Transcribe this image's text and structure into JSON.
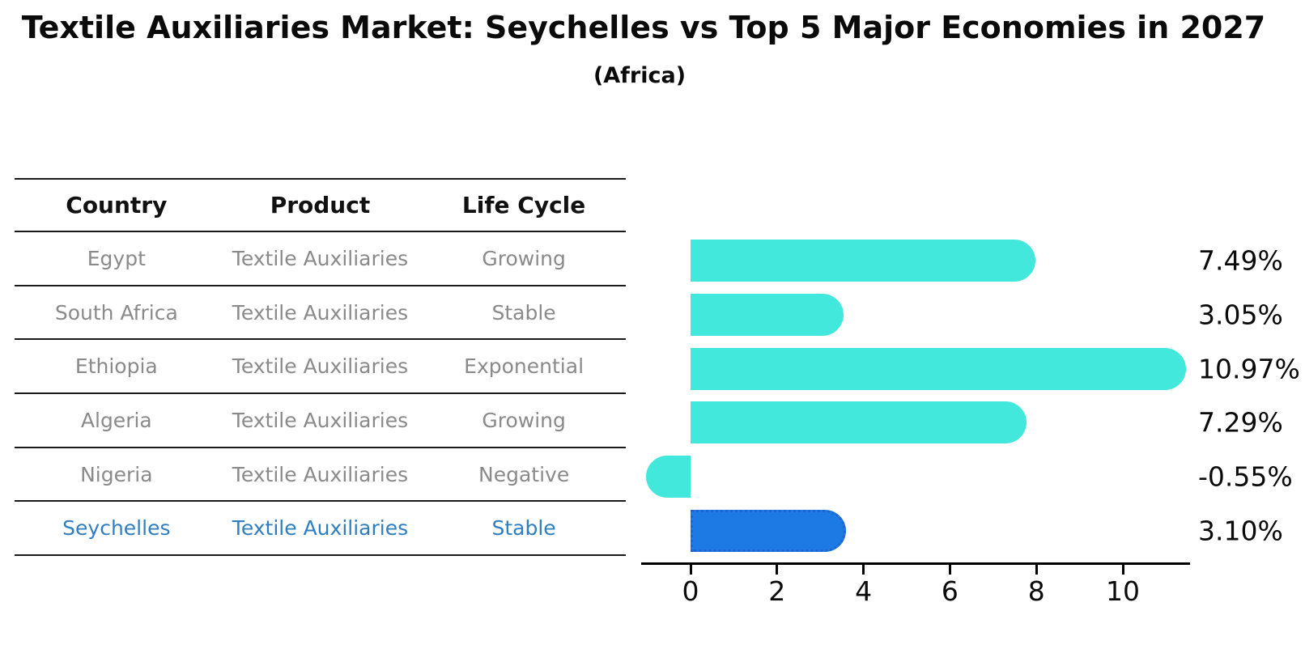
{
  "header": {
    "title": "Textile Auxiliaries Market: Seychelles vs Top 5 Major Economies in 2027",
    "subtitle": "(Africa)"
  },
  "table": {
    "columns": [
      "Country",
      "Product",
      "Life Cycle"
    ],
    "rows": [
      {
        "country": "Egypt",
        "product": "Textile Auxiliaries",
        "life_cycle": "Growing"
      },
      {
        "country": "South Africa",
        "product": "Textile Auxiliaries",
        "life_cycle": "Stable"
      },
      {
        "country": "Ethiopia",
        "product": "Textile Auxiliaries",
        "life_cycle": "Exponential"
      },
      {
        "country": "Algeria",
        "product": "Textile Auxiliaries",
        "life_cycle": "Growing"
      },
      {
        "country": "Nigeria",
        "product": "Textile Auxiliaries",
        "life_cycle": "Negative"
      },
      {
        "country": "Seychelles",
        "product": "Textile Auxiliaries",
        "life_cycle": "Stable"
      }
    ]
  },
  "chart_data": {
    "type": "bar",
    "orientation": "horizontal",
    "title": "Textile Auxiliaries Market: Seychelles vs Top 5 Major Economies in 2027 (Africa)",
    "categories": [
      "Egypt",
      "South Africa",
      "Ethiopia",
      "Algeria",
      "Nigeria",
      "Seychelles"
    ],
    "values": [
      7.49,
      3.05,
      10.97,
      7.29,
      -0.55,
      3.1
    ],
    "value_labels": [
      "7.49%",
      "3.05%",
      "10.97%",
      "7.29%",
      "-0.55%",
      "3.10%"
    ],
    "x_ticks": [
      "0",
      "2",
      "4",
      "6",
      "8",
      "10"
    ],
    "xlim": [
      -1.15,
      11.55
    ],
    "grid": false,
    "legend": false,
    "bar_color": "#43E8DC",
    "highlight_color": "#1D79E4",
    "highlight_border_color": "#1b66cf",
    "highlight_index": 5,
    "axis_color": "#000000"
  }
}
